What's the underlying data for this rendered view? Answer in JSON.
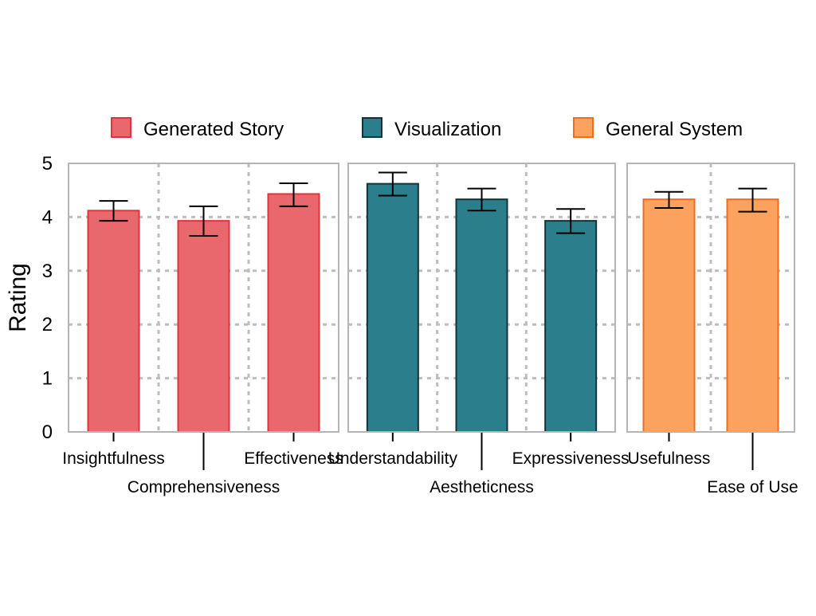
{
  "chart_data": {
    "type": "bar",
    "ylabel": "Rating",
    "ylim": [
      0,
      5
    ],
    "yticks": [
      0,
      1,
      2,
      3,
      4,
      5
    ],
    "grid": true,
    "legend_position": "top",
    "series": [
      {
        "name": "Generated Story",
        "color": "#e8686e",
        "edge_color": "#e0343a",
        "categories": [
          "Insightfulness",
          "Comprehensiveness",
          "Effectiveness"
        ],
        "values": [
          4.12,
          3.93,
          4.43
        ],
        "error_low": [
          3.93,
          3.65,
          4.2
        ],
        "error_high": [
          4.3,
          4.2,
          4.63
        ]
      },
      {
        "name": "Visualization",
        "color": "#2b7f8c",
        "edge_color": "#12333a",
        "categories": [
          "Understandability",
          "Aestheticness",
          "Expressiveness"
        ],
        "values": [
          4.62,
          4.33,
          3.93
        ],
        "error_low": [
          4.4,
          4.12,
          3.7
        ],
        "error_high": [
          4.83,
          4.53,
          4.15
        ]
      },
      {
        "name": "General System",
        "color": "#fba35e",
        "edge_color": "#f06c1e",
        "categories": [
          "Usefulness",
          "Ease of Use"
        ],
        "values": [
          4.33,
          4.33
        ],
        "error_low": [
          4.17,
          4.1
        ],
        "error_high": [
          4.47,
          4.53
        ]
      }
    ]
  }
}
